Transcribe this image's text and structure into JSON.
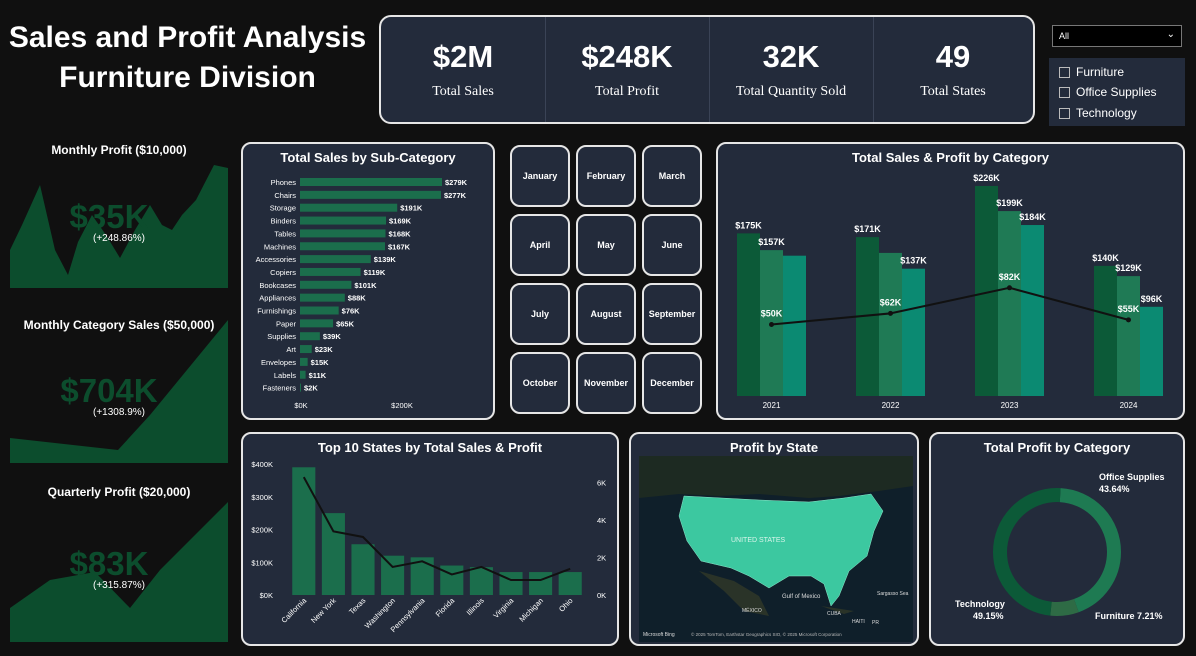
{
  "title": {
    "line1": "Sales and Profit Analysis",
    "line2": "Furniture Division"
  },
  "kpis": [
    {
      "value": "$2M",
      "label": "Total Sales"
    },
    {
      "value": "$248K",
      "label": "Total Profit"
    },
    {
      "value": "32K",
      "label": "Total Quantity Sold"
    },
    {
      "value": "49",
      "label": "Total States"
    }
  ],
  "slicer": {
    "dropdown_value": "All",
    "options": [
      "Furniture",
      "Office Supplies",
      "Technology"
    ]
  },
  "left_cards": [
    {
      "title": "Monthly Profit ($10,000)",
      "value": "$35K",
      "pct": "(+248.86%)"
    },
    {
      "title": "Monthly Category Sales ($50,000)",
      "value": "$704K",
      "pct": "(+1308.9%)"
    },
    {
      "title": "Quarterly Profit ($20,000)",
      "value": "$83K",
      "pct": "(+315.87%)"
    }
  ],
  "months": [
    "January",
    "February",
    "March",
    "April",
    "May",
    "June",
    "July",
    "August",
    "September",
    "October",
    "November",
    "December"
  ],
  "colors": {
    "dark_green": "#0c5a38",
    "mid_green": "#1b6e4c",
    "teal": "#0b8a72",
    "panel": "#232b3b",
    "line": "#111111"
  },
  "chart_data": [
    {
      "type": "bar",
      "title": "Total Sales by Sub-Category",
      "orientation": "horizontal",
      "categories": [
        "Phones",
        "Chairs",
        "Storage",
        "Binders",
        "Tables",
        "Machines",
        "Accessories",
        "Copiers",
        "Bookcases",
        "Appliances",
        "Furnishings",
        "Paper",
        "Supplies",
        "Art",
        "Envelopes",
        "Labels",
        "Fasteners"
      ],
      "values": [
        279,
        277,
        191,
        169,
        168,
        167,
        139,
        119,
        101,
        88,
        76,
        65,
        39,
        23,
        15,
        11,
        2
      ],
      "labels": [
        "$279K",
        "$277K",
        "$191K",
        "$169K",
        "$168K",
        "$167K",
        "$139K",
        "$119K",
        "$101K",
        "$88K",
        "$76K",
        "$65K",
        "$39K",
        "$23K",
        "$15K",
        "$11K",
        "$2K"
      ],
      "xticks": [
        "$0K",
        "$200K"
      ],
      "xlim": [
        0,
        279
      ]
    },
    {
      "type": "bar",
      "title": "Total Sales & Profit by Category",
      "categories": [
        "2021",
        "2022",
        "2023",
        "2024"
      ],
      "series": [
        {
          "values": [
            175,
            171,
            226,
            140
          ],
          "labels": [
            "$175K",
            "$171K",
            "$226K",
            "$140K"
          ]
        },
        {
          "values": [
            157,
            154,
            199,
            129
          ],
          "labels": [
            "$157K",
            "",
            "$199K",
            "$129K"
          ]
        },
        {
          "values": [
            151,
            137,
            184,
            96
          ],
          "labels": [
            "",
            "$137K",
            "$184K",
            "$96K"
          ]
        }
      ],
      "line": {
        "values": [
          50,
          62,
          82,
          55
        ],
        "labels": [
          "$50K",
          "$62K",
          "$82K",
          "$55K"
        ]
      },
      "ylim": [
        0,
        226
      ]
    },
    {
      "type": "bar",
      "title": "Top 10 States by Total Sales & Profit",
      "categories": [
        "California",
        "New York",
        "Texas",
        "Washington",
        "Pennsylvania",
        "Florida",
        "Illinois",
        "Virginia",
        "Michigan",
        "Ohio"
      ],
      "bar_values": [
        390,
        250,
        155,
        120,
        115,
        90,
        85,
        70,
        70,
        70
      ],
      "line_values": [
        6300,
        3400,
        3100,
        1500,
        1800,
        1100,
        1500,
        800,
        800,
        1400
      ],
      "yticks_left": [
        "$400K",
        "$300K",
        "$200K",
        "$100K",
        "$0K"
      ],
      "yticks_right": [
        "6K",
        "4K",
        "2K",
        "0K"
      ],
      "ylim_left": [
        0,
        400
      ],
      "ylim_right": [
        0,
        7000
      ]
    },
    {
      "type": "pie",
      "title": "Total Profit by Category",
      "slices": [
        {
          "name": "Office Supplies",
          "pct": 43.64,
          "label": "Office Supplies\n43.64%"
        },
        {
          "name": "Technology",
          "pct": 49.15,
          "label": "Technology\n49.15%"
        },
        {
          "name": "Furniture",
          "pct": 7.21,
          "label": "Furniture 7.21%"
        }
      ]
    }
  ],
  "map": {
    "title": "Profit by State",
    "country_label": "UNITED STATES",
    "labels": [
      "Gulf of Mexico",
      "MÉXICO",
      "CUBA",
      "Sargasso Sea",
      "HAITI",
      "PR"
    ],
    "attribution": "© 2025 TomTom, Earthstar Geographics SIO, © 2025 Microsoft Corporation",
    "logo": "Microsoft Bing"
  }
}
